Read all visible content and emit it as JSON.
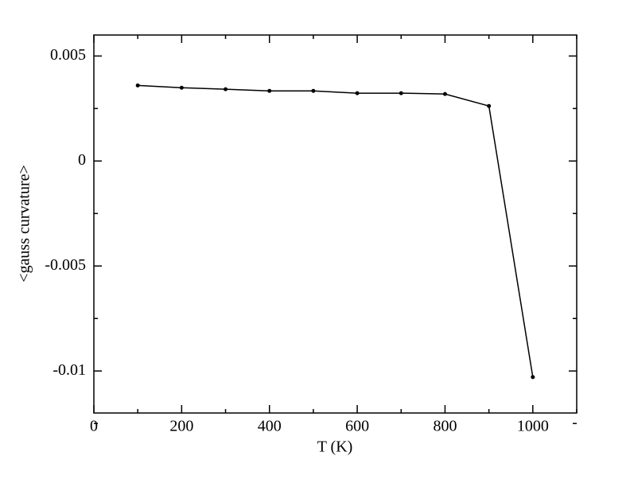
{
  "chart_data": {
    "type": "line",
    "xlabel": "T (K)",
    "ylabel": "<gauss curvature>",
    "x": [
      100,
      200,
      300,
      400,
      500,
      600,
      700,
      800,
      900,
      1000
    ],
    "series": [
      {
        "color": "#000000",
        "values": [
          0.0036,
          0.00349,
          0.00342,
          0.00334,
          0.00334,
          0.00323,
          0.00323,
          0.00319,
          0.00262,
          -0.01029
        ]
      }
    ],
    "xlim": [
      0,
      1100
    ],
    "xticks": [
      0,
      200,
      400,
      600,
      800,
      1000
    ],
    "xminorticks": [
      100,
      300,
      500,
      700,
      900,
      1100
    ],
    "ylim": [
      -0.012,
      0.006
    ],
    "yticks": [
      -0.01,
      -0.005,
      0,
      0.005
    ],
    "yminorticks": [
      -0.0125,
      -0.0075,
      -0.0025,
      0.0025
    ],
    "grid": false
  }
}
